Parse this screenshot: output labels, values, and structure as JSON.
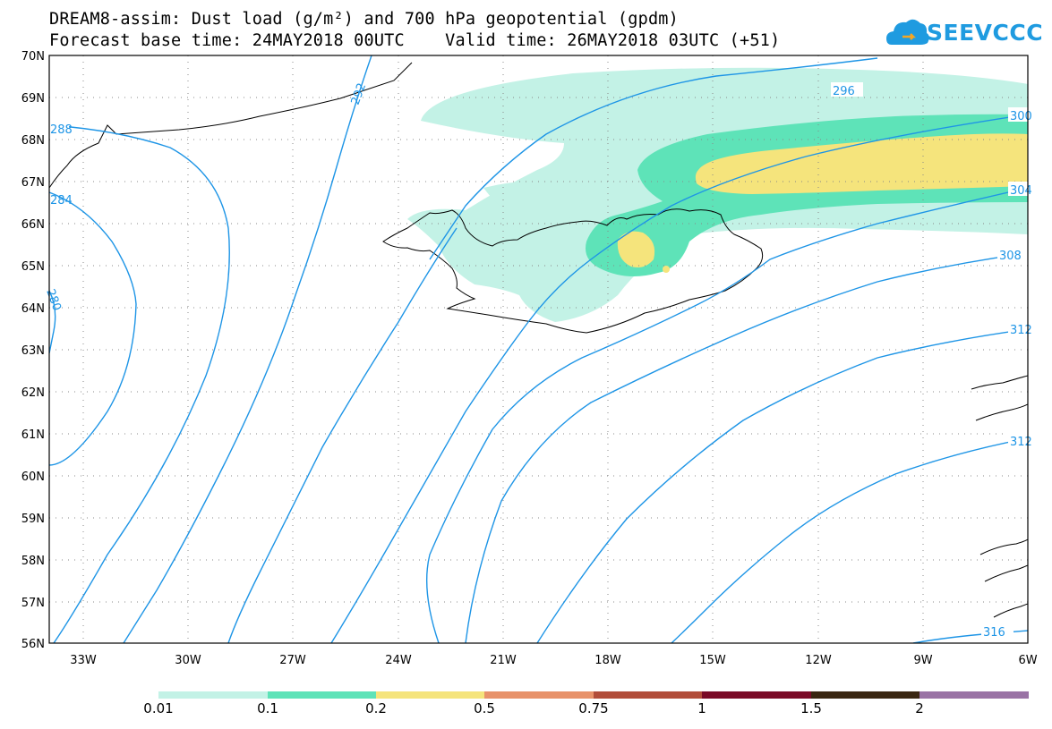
{
  "title": {
    "line1": "DREAM8-assim: Dust load (g/m²) and 700 hPa geopotential (gpdm)",
    "line2": "Forecast base time: 24MAY2018 00UTC    Valid time: 26MAY2018 03UTC (+51)"
  },
  "logo": {
    "text": "SEEVCCC",
    "icon": "cloud-icon",
    "color": "#1f9be0"
  },
  "lat_labels": [
    "70N",
    "69N",
    "68N",
    "67N",
    "66N",
    "65N",
    "64N",
    "63N",
    "62N",
    "61N",
    "60N",
    "59N",
    "58N",
    "57N",
    "56N"
  ],
  "lon_labels": [
    "33W",
    "30W",
    "27W",
    "24W",
    "21W",
    "18W",
    "15W",
    "12W",
    "9W",
    "6W"
  ],
  "contour_labels": [
    "296",
    "292",
    "288",
    "284",
    "280",
    "300",
    "304",
    "308",
    "312",
    "316"
  ],
  "colorbar": {
    "labels": [
      "0.01",
      "0.1",
      "0.2",
      "0.5",
      "0.75",
      "1",
      "1.5",
      "2"
    ],
    "colors": [
      "#c3f2e6",
      "#5ee3b8",
      "#f5e47c",
      "#e8926a",
      "#b24d3a",
      "#7a0a27",
      "#3a2611",
      "#9a73a5"
    ]
  },
  "colors": {
    "contour": "#1e95e6",
    "coast": "#000000",
    "grid": "#888888"
  }
}
